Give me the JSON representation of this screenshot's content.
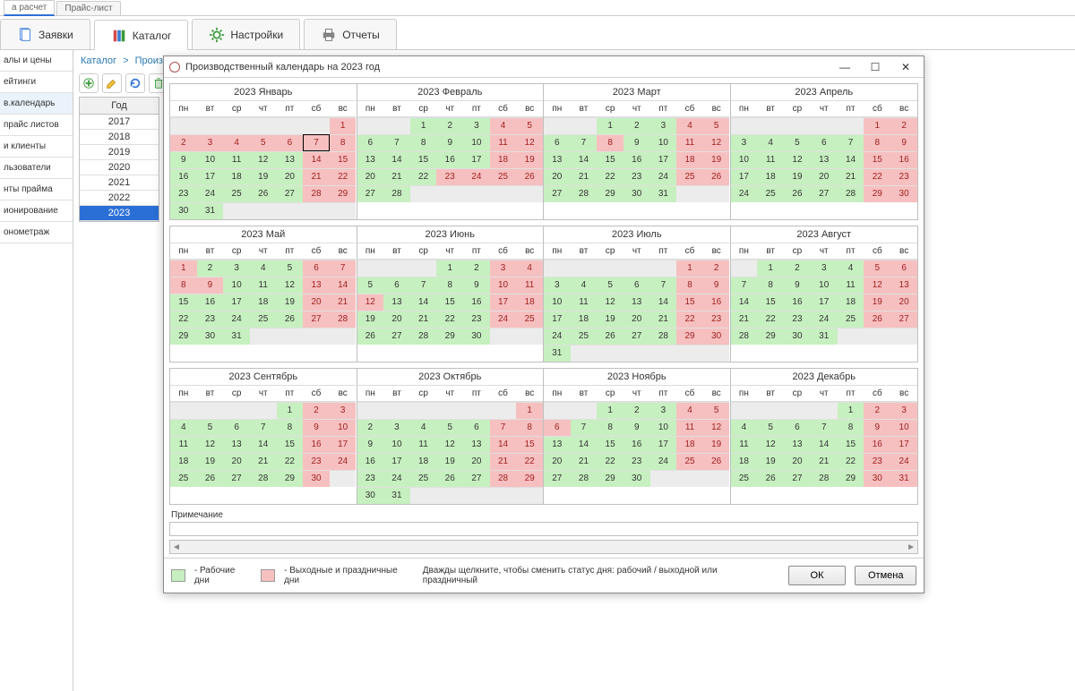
{
  "small_tabs": {
    "left": "а расчет",
    "right": "Прайс-лист",
    "active_index": 0
  },
  "main_tabs": [
    {
      "label": "Заявки",
      "icon": "doc-icon"
    },
    {
      "label": "Каталог",
      "icon": "books-icon"
    },
    {
      "label": "Настройки",
      "icon": "gear-icon"
    },
    {
      "label": "Отчеты",
      "icon": "printer-icon"
    }
  ],
  "main_tabs_active": 1,
  "sidebar": [
    "алы и цены",
    "ейтинги",
    "в.календарь",
    "прайс листов",
    "и клиенты",
    "льзователи",
    "нты прайма",
    "ионирование",
    "онометраж"
  ],
  "sidebar_active": 2,
  "breadcrumb": {
    "root": "Каталог",
    "leaf": "Производственный календарь"
  },
  "year_panel": {
    "header": "Год",
    "years": [
      "2017",
      "2018",
      "2019",
      "2020",
      "2021",
      "2022",
      "2023"
    ],
    "selected": "2023"
  },
  "dialog": {
    "title": "Производственный календарь на 2023 год",
    "note_label": "Примечание",
    "legend_work": "- Рабочие дни",
    "legend_off": "- Выходные и праздничные дни",
    "hint": "Дважды щелкните, чтобы сменить статус дня: рабочий / выходной или праздничный",
    "ok": "ОК",
    "cancel": "Отмена"
  },
  "dow": [
    "пн",
    "вт",
    "ср",
    "чт",
    "пт",
    "сб",
    "вс"
  ],
  "months": [
    {
      "title": "2023 Январь",
      "lead": 6,
      "ndays": 31,
      "off": [
        1,
        2,
        3,
        4,
        5,
        6,
        7,
        8,
        14,
        15,
        21,
        22,
        28,
        29
      ],
      "today": 7
    },
    {
      "title": "2023 Февраль",
      "lead": 2,
      "ndays": 28,
      "off": [
        4,
        5,
        11,
        12,
        18,
        19,
        23,
        24,
        25,
        26
      ]
    },
    {
      "title": "2023 Март",
      "lead": 2,
      "ndays": 31,
      "off": [
        4,
        5,
        8,
        11,
        12,
        18,
        19,
        25,
        26
      ]
    },
    {
      "title": "2023 Апрель",
      "lead": 5,
      "ndays": 30,
      "off": [
        1,
        2,
        8,
        9,
        15,
        16,
        22,
        23,
        29,
        30
      ]
    },
    {
      "title": "2023 Май",
      "lead": 0,
      "ndays": 31,
      "off": [
        1,
        6,
        7,
        8,
        9,
        13,
        14,
        20,
        21,
        27,
        28
      ]
    },
    {
      "title": "2023 Июнь",
      "lead": 3,
      "ndays": 30,
      "off": [
        3,
        4,
        10,
        11,
        12,
        17,
        18,
        24,
        25
      ]
    },
    {
      "title": "2023 Июль",
      "lead": 5,
      "ndays": 31,
      "off": [
        1,
        2,
        8,
        9,
        15,
        16,
        22,
        23,
        29,
        30
      ]
    },
    {
      "title": "2023 Август",
      "lead": 1,
      "ndays": 31,
      "off": [
        5,
        6,
        12,
        13,
        19,
        20,
        26,
        27
      ]
    },
    {
      "title": "2023 Сентябрь",
      "lead": 4,
      "ndays": 30,
      "off": [
        2,
        3,
        9,
        10,
        16,
        17,
        23,
        24,
        30
      ]
    },
    {
      "title": "2023 Октябрь",
      "lead": 6,
      "ndays": 31,
      "off": [
        1,
        7,
        8,
        14,
        15,
        21,
        22,
        28,
        29
      ]
    },
    {
      "title": "2023 Ноябрь",
      "lead": 2,
      "ndays": 30,
      "off": [
        4,
        5,
        6,
        11,
        12,
        18,
        19,
        25,
        26
      ]
    },
    {
      "title": "2023 Декабрь",
      "lead": 4,
      "ndays": 31,
      "off": [
        2,
        3,
        9,
        10,
        16,
        17,
        23,
        24,
        30,
        31
      ]
    }
  ],
  "colors": {
    "work": "#c7f0c0",
    "off": "#f7c0c0",
    "empty": "#ececec",
    "sel": "#2a6fd6"
  }
}
